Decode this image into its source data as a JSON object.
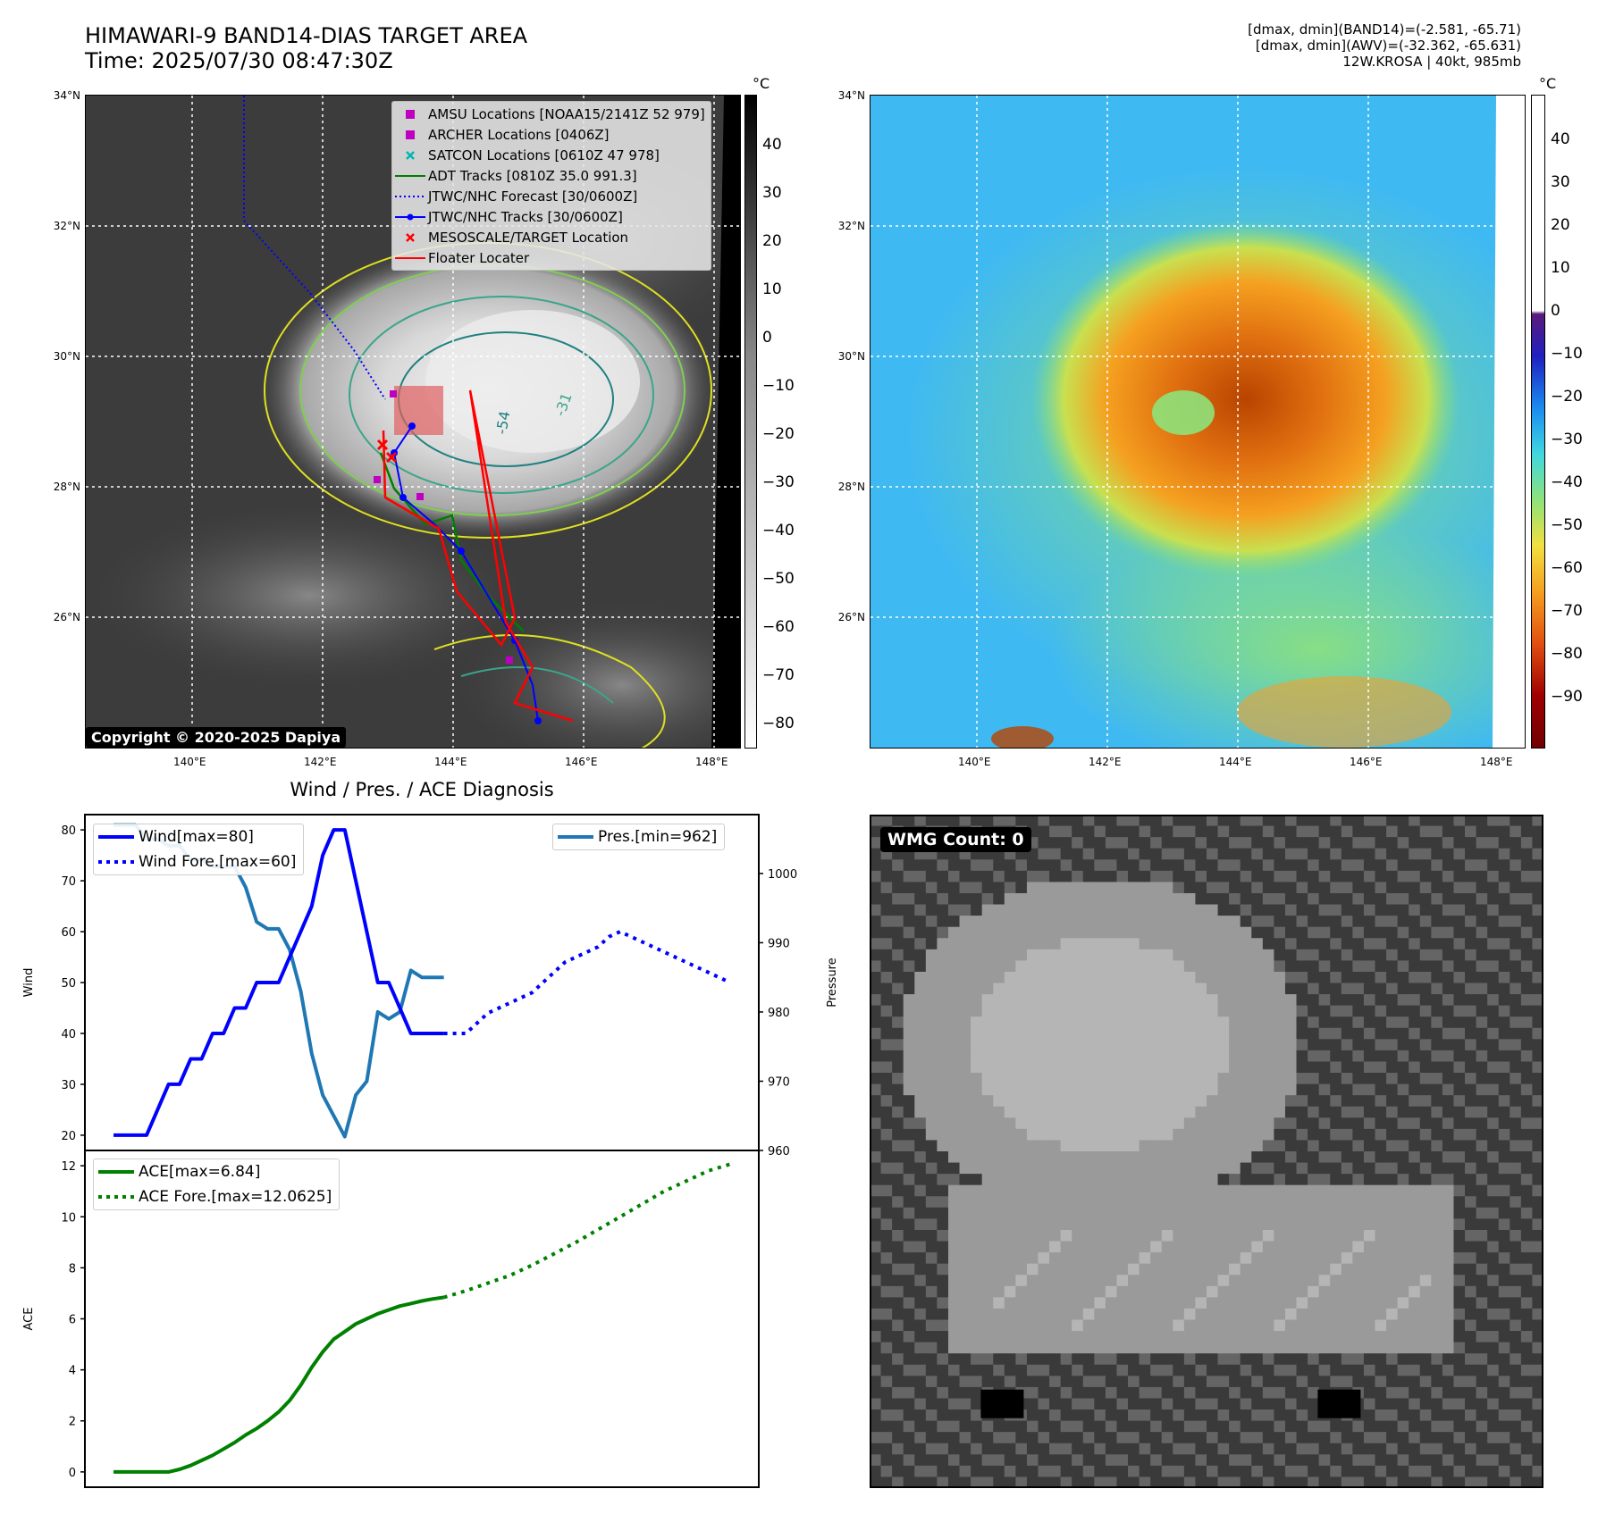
{
  "header": {
    "title_line1": "HIMAWARI-9 BAND14-DIAS TARGET AREA",
    "title_line2": "Time: 2025/07/30 08:47:30Z",
    "info_line1": "[dmax, dmin](BAND14)=(-2.581, -65.71)",
    "info_line2": "[dmax, dmin](AWV)=(-32.362, -65.631)",
    "info_line3": "12W.KROSA | 40kt, 985mb"
  },
  "map_axes": {
    "lat_ticks": [
      "34°N",
      "32°N",
      "30°N",
      "28°N",
      "26°N"
    ],
    "lon_ticks": [
      "140°E",
      "142°E",
      "144°E",
      "146°E",
      "148°E"
    ]
  },
  "ir_map": {
    "colorbar_unit": "°C",
    "colorbar_ticks": [
      "40",
      "30",
      "20",
      "10",
      "0",
      "−10",
      "−20",
      "−30",
      "−40",
      "−50",
      "−60",
      "−70",
      "−80"
    ],
    "contour_labels": [
      "-54",
      "-31"
    ],
    "copyright": "Copyright © 2020-2025 Dapiya",
    "legend": [
      {
        "label": "AMSU Locations [NOAA15/2141Z 52 979]",
        "icon": "square-marker",
        "color": "#c000c0"
      },
      {
        "label": "ARCHER Locations [0406Z]",
        "icon": "square-marker",
        "color": "#c000c0"
      },
      {
        "label": "SATCON Locations [0610Z 47 978]",
        "icon": "x-marker",
        "color": "#00b5b5"
      },
      {
        "label": "ADT Tracks [0810Z 35.0 991.3]",
        "icon": "line",
        "color": "#007f00"
      },
      {
        "label": "JTWC/NHC Forecast [30/0600Z]",
        "icon": "dotted-line",
        "color": "#0000ff"
      },
      {
        "label": "JTWC/NHC Tracks [30/0600Z]",
        "icon": "line-dot",
        "color": "#0000ff"
      },
      {
        "label": "MESOSCALE/TARGET Location",
        "icon": "x-marker",
        "color": "#ff0000"
      },
      {
        "label": "Floater Locater",
        "icon": "line",
        "color": "#ff0000"
      }
    ]
  },
  "awv_map": {
    "colorbar_unit": "°C",
    "colorbar_ticks": [
      "40",
      "30",
      "20",
      "10",
      "0",
      "−10",
      "−20",
      "−30",
      "−40",
      "−50",
      "−60",
      "−70",
      "−80",
      "−90"
    ]
  },
  "wmg_panel": {
    "badge": "WMG Count: 0"
  },
  "chart_data": [
    {
      "type": "line",
      "title": "Wind / Pres. / ACE Diagnosis",
      "ylabel": "Wind",
      "ylabel_right": "Pressure",
      "ylim": [
        17,
        83
      ],
      "ylim_right": [
        960,
        1008.5
      ],
      "yticks": [
        20,
        30,
        40,
        50,
        60,
        70,
        80
      ],
      "yticks_right": [
        960,
        970,
        980,
        990,
        1000
      ],
      "x_count": 56,
      "series": [
        {
          "name": "Wind[max=80]",
          "axis": "left",
          "color": "#0000ff",
          "style": "solid",
          "x": [
            0,
            1,
            2,
            3,
            4,
            5,
            6,
            7,
            8,
            9,
            10,
            11,
            12,
            13,
            14,
            15,
            16,
            17,
            18,
            19,
            20,
            21,
            22,
            23,
            24,
            25,
            26,
            27,
            28,
            29,
            30,
            31,
            32,
            33,
            34,
            35,
            36
          ],
          "y": [
            20,
            20,
            20,
            20,
            25,
            30,
            30,
            35,
            35,
            40,
            40,
            45,
            45,
            50,
            50,
            50,
            55,
            60,
            65,
            75,
            80,
            80,
            70,
            60,
            50,
            50,
            45,
            40,
            40,
            40,
            40,
            null,
            null,
            null,
            null,
            null,
            null
          ]
        },
        {
          "name": "Wind Fore.[max=60]",
          "axis": "left",
          "color": "#0000ff",
          "style": "dotted",
          "x": [
            30,
            31,
            32,
            33,
            34,
            35,
            36,
            37,
            38,
            39,
            40,
            41,
            42,
            43,
            44,
            45,
            46,
            47,
            48,
            49,
            50,
            51,
            52,
            53,
            54,
            55,
            56
          ],
          "y": [
            40,
            40,
            40,
            42,
            44,
            45,
            46,
            47,
            48,
            50,
            52,
            54,
            55,
            56,
            57,
            59,
            60,
            59,
            58,
            57,
            56,
            55,
            54,
            53,
            52,
            51,
            50
          ]
        },
        {
          "name": "Pres.[min=962]",
          "axis": "right",
          "color": "#1f77b4",
          "style": "solid",
          "x": [
            0,
            1,
            2,
            3,
            4,
            5,
            6,
            7,
            8,
            9,
            10,
            11,
            12,
            13,
            14,
            15,
            16,
            17,
            18,
            19,
            20,
            21,
            22,
            23,
            24,
            25,
            26,
            27,
            28,
            29,
            30
          ],
          "y": [
            1007,
            1007,
            1007,
            1005,
            1005,
            1004,
            1004,
            1002,
            1002,
            1001,
            1001,
            1001,
            998,
            993,
            992,
            992,
            989,
            983,
            974,
            968,
            965,
            962,
            968,
            970,
            980,
            979,
            980,
            986,
            985,
            985,
            985
          ]
        }
      ]
    },
    {
      "type": "line",
      "ylabel": "ACE",
      "ylim": [
        -0.6,
        12.6
      ],
      "yticks": [
        0,
        2,
        4,
        6,
        8,
        10,
        12
      ],
      "x_count": 56,
      "series": [
        {
          "name": "ACE[max=6.84]",
          "color": "#008000",
          "style": "solid",
          "x": [
            0,
            1,
            2,
            3,
            4,
            5,
            6,
            7,
            8,
            9,
            10,
            11,
            12,
            13,
            14,
            15,
            16,
            17,
            18,
            19,
            20,
            21,
            22,
            23,
            24,
            25,
            26,
            27,
            28,
            29,
            30
          ],
          "y": [
            0,
            0,
            0,
            0,
            0,
            0,
            0.1,
            0.25,
            0.45,
            0.65,
            0.9,
            1.15,
            1.45,
            1.7,
            2.0,
            2.35,
            2.8,
            3.4,
            4.1,
            4.7,
            5.2,
            5.5,
            5.8,
            6.0,
            6.2,
            6.35,
            6.5,
            6.6,
            6.7,
            6.78,
            6.84
          ]
        },
        {
          "name": "ACE Fore.[max=12.0625]",
          "color": "#008000",
          "style": "dotted",
          "x": [
            30,
            32,
            34,
            36,
            38,
            40,
            42,
            44,
            46,
            48,
            50,
            52,
            54,
            56
          ],
          "y": [
            6.84,
            7.1,
            7.4,
            7.7,
            8.1,
            8.55,
            9.0,
            9.5,
            10.0,
            10.5,
            11.0,
            11.4,
            11.8,
            12.06
          ]
        }
      ]
    }
  ]
}
